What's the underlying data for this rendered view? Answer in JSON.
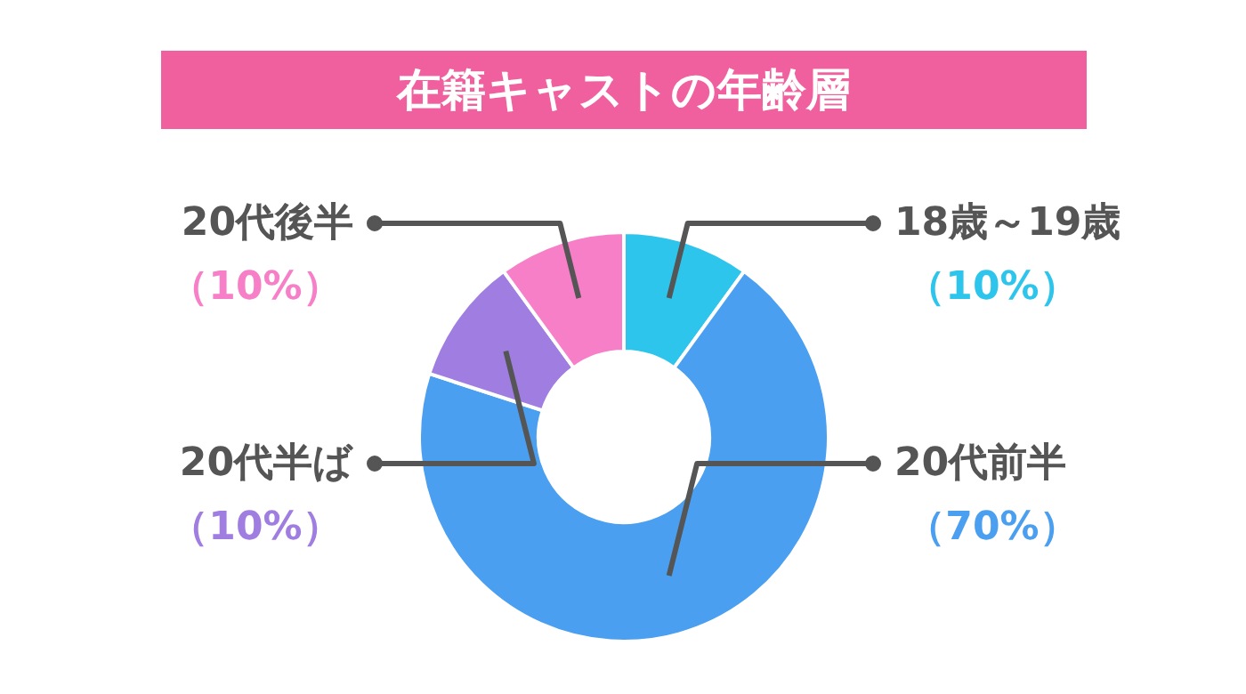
{
  "chart_data": {
    "type": "donut",
    "title": "在籍キャストの年齢層",
    "categories": [
      "18歳～19歳",
      "20代前半",
      "20代半ば",
      "20代後半"
    ],
    "values": [
      10,
      70,
      10,
      10
    ],
    "colors": [
      "#2ec5ec",
      "#4a9ff0",
      "#a07de0",
      "#f67fc8"
    ],
    "value_labels": [
      "（10%）",
      "（70%）",
      "（10%）",
      "（10%）"
    ]
  }
}
